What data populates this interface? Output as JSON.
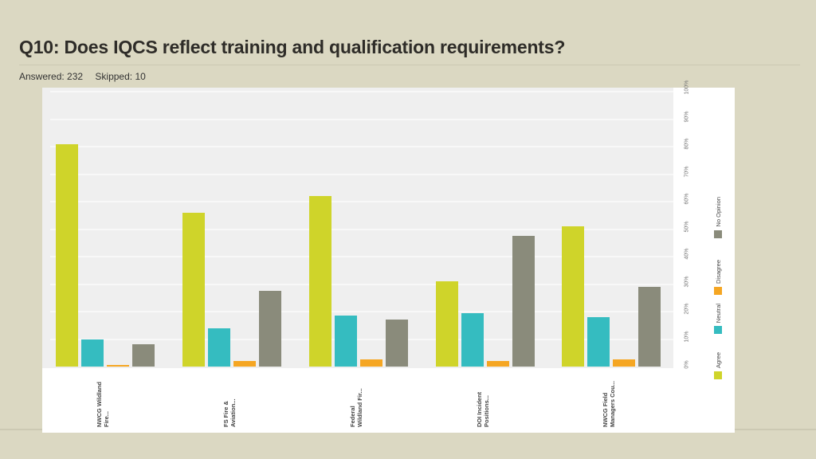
{
  "header": {
    "title": "Q10: Does IQCS reflect training and qualification requirements?",
    "answered": "Answered: 232",
    "skipped": "Skipped: 10"
  },
  "colors": {
    "background": "#dbd8c2",
    "agree": "#cfd42a",
    "neutral": "#35bcc0",
    "disagree": "#f5a623",
    "no_opinion": "#8a8b7b"
  },
  "chart_data": {
    "type": "bar",
    "title": "Q10: Does IQCS reflect training and qualification requirements?",
    "xlabel": "",
    "ylabel": "",
    "ylim": [
      0,
      100
    ],
    "y_ticks": [
      "0%",
      "10%",
      "20%",
      "30%",
      "40%",
      "50%",
      "60%",
      "70%",
      "80%",
      "90%",
      "100%"
    ],
    "grid": true,
    "legend_position": "right",
    "categories": [
      "NWCG Wildland Fire...",
      "FS Fire & Aviation...",
      "Federal Wildland Fir...",
      "DOI Incident Positions...",
      "NWCG Field Managers Cou..."
    ],
    "category_lines": [
      [
        "NWCG Wildland",
        "Fire..."
      ],
      [
        "FS Fire &",
        "Aviation..."
      ],
      [
        "Federal",
        "Wildland Fir..."
      ],
      [
        "DOI Incident",
        "Positions..."
      ],
      [
        "NWCG Field",
        "Managers Cou..."
      ]
    ],
    "series": [
      {
        "name": "Agree",
        "color": "#cfd42a",
        "values": [
          81,
          56,
          62,
          31,
          51
        ]
      },
      {
        "name": "Neutral",
        "color": "#35bcc0",
        "values": [
          10,
          14,
          18.5,
          19.5,
          18
        ]
      },
      {
        "name": "Disagree",
        "color": "#f5a623",
        "values": [
          0.5,
          2,
          2.5,
          2,
          2.5
        ]
      },
      {
        "name": "No Opinion",
        "color": "#8a8b7b",
        "values": [
          8,
          27.5,
          17,
          47.5,
          29
        ]
      }
    ]
  }
}
